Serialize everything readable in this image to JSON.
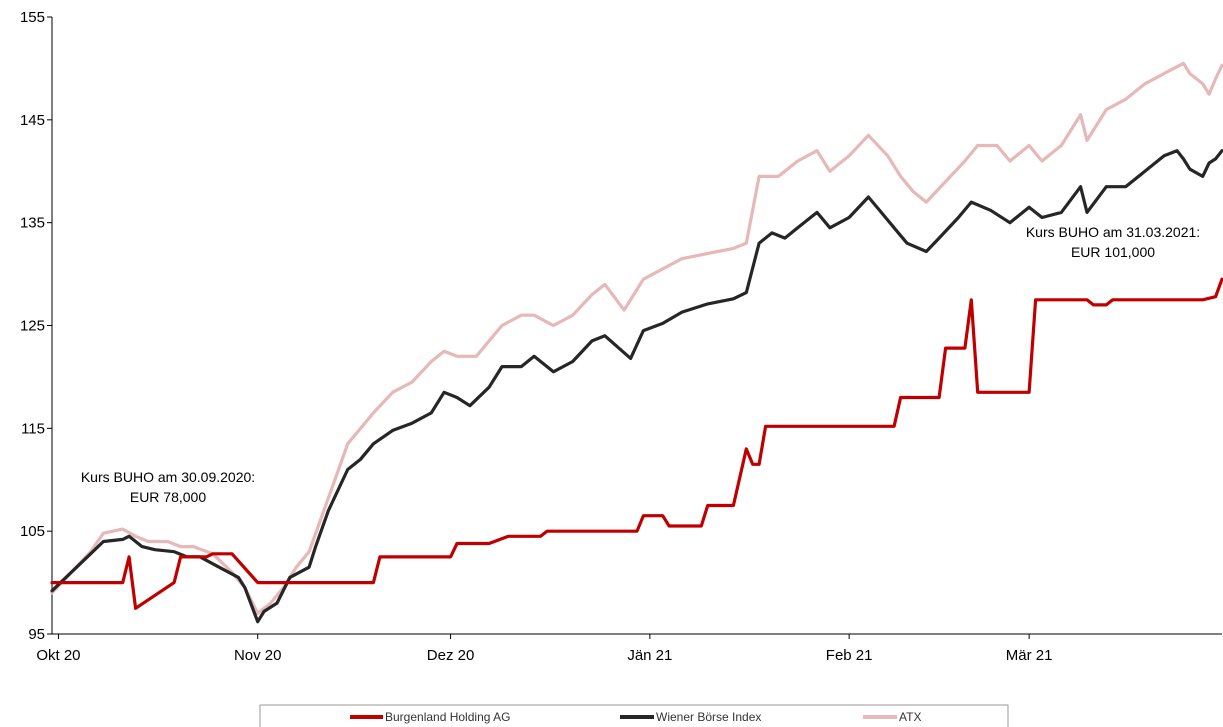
{
  "chart_data": {
    "type": "line",
    "title": "",
    "xlabel": "",
    "ylabel": "",
    "ylim": [
      95,
      155
    ],
    "yticks": [
      95,
      105,
      115,
      125,
      135,
      145,
      155
    ],
    "x_start": "2020-09-30",
    "x_end": "2021-03-31",
    "xticks": [
      {
        "date": "2020-10-01",
        "label": "Okt 20"
      },
      {
        "date": "2020-11-01",
        "label": "Nov 20"
      },
      {
        "date": "2020-12-01",
        "label": "Dez 20"
      },
      {
        "date": "2021-01-01",
        "label": "Jän 21"
      },
      {
        "date": "2021-02-01",
        "label": "Feb 21"
      },
      {
        "date": "2021-03-01",
        "label": "Mär 21"
      }
    ],
    "grid": false,
    "legend_position": "bottom",
    "annotations": [
      {
        "lines": [
          "Kurs BUHO am 30.09.2020:",
          "EUR 78,000"
        ]
      },
      {
        "lines": [
          "Kurs BUHO am 31.03.2021:",
          "EUR 101,000"
        ]
      }
    ],
    "series": [
      {
        "name": "Burgenland Holding AG",
        "color": "#c00000",
        "points": [
          [
            "2020-09-30",
            100
          ],
          [
            "2020-10-07",
            100
          ],
          [
            "2020-10-11",
            100
          ],
          [
            "2020-10-12",
            102.5
          ],
          [
            "2020-10-13",
            97.5
          ],
          [
            "2020-10-19",
            100
          ],
          [
            "2020-10-20",
            102.5
          ],
          [
            "2020-10-24",
            102.5
          ],
          [
            "2020-10-25",
            102.8
          ],
          [
            "2020-10-28",
            102.8
          ],
          [
            "2020-11-01",
            100
          ],
          [
            "2020-11-06",
            100
          ],
          [
            "2020-11-08",
            100
          ],
          [
            "2020-11-14",
            100
          ],
          [
            "2020-11-19",
            100
          ],
          [
            "2020-11-20",
            102.5
          ],
          [
            "2020-11-23",
            102.5
          ],
          [
            "2020-12-01",
            102.5
          ],
          [
            "2020-12-02",
            103.8
          ],
          [
            "2020-12-07",
            103.8
          ],
          [
            "2020-12-10",
            104.5
          ],
          [
            "2020-12-15",
            104.5
          ],
          [
            "2020-12-16",
            105
          ],
          [
            "2020-12-22",
            105
          ],
          [
            "2020-12-30",
            105
          ],
          [
            "2020-12-31",
            106.5
          ],
          [
            "2021-01-03",
            106.5
          ],
          [
            "2021-01-04",
            105.5
          ],
          [
            "2021-01-09",
            105.5
          ],
          [
            "2021-01-10",
            107.5
          ],
          [
            "2021-01-14",
            107.5
          ],
          [
            "2021-01-16",
            113
          ],
          [
            "2021-01-17",
            111.5
          ],
          [
            "2021-01-18",
            111.5
          ],
          [
            "2021-01-19",
            115.2
          ],
          [
            "2021-01-28",
            115.2
          ],
          [
            "2021-02-01",
            115.2
          ],
          [
            "2021-02-08",
            115.2
          ],
          [
            "2021-02-09",
            118
          ],
          [
            "2021-02-15",
            118
          ],
          [
            "2021-02-16",
            122.8
          ],
          [
            "2021-02-19",
            122.8
          ],
          [
            "2021-02-20",
            127.5
          ],
          [
            "2021-02-21",
            118.5
          ],
          [
            "2021-02-28",
            118.5
          ],
          [
            "2021-03-01",
            118.5
          ],
          [
            "2021-03-02",
            127.5
          ],
          [
            "2021-03-10",
            127.5
          ],
          [
            "2021-03-11",
            127
          ],
          [
            "2021-03-13",
            127
          ],
          [
            "2021-03-14",
            127.5
          ],
          [
            "2021-03-28",
            127.5
          ],
          [
            "2021-03-30",
            127.8
          ],
          [
            "2021-03-31",
            129.5
          ]
        ]
      },
      {
        "name": "Wiener Börse Index",
        "color": "#262626",
        "points": [
          [
            "2020-09-30",
            99.2
          ],
          [
            "2020-10-03",
            101
          ],
          [
            "2020-10-06",
            102.8
          ],
          [
            "2020-10-08",
            104
          ],
          [
            "2020-10-11",
            104.2
          ],
          [
            "2020-10-12",
            104.5
          ],
          [
            "2020-10-14",
            103.5
          ],
          [
            "2020-10-16",
            103.2
          ],
          [
            "2020-10-19",
            103
          ],
          [
            "2020-10-21",
            102.5
          ],
          [
            "2020-10-23",
            102.5
          ],
          [
            "2020-10-26",
            101.5
          ],
          [
            "2020-10-29",
            100.5
          ],
          [
            "2020-10-30",
            99.5
          ],
          [
            "2020-11-01",
            96.2
          ],
          [
            "2020-11-02",
            97.2
          ],
          [
            "2020-11-04",
            98
          ],
          [
            "2020-11-06",
            100.5
          ],
          [
            "2020-11-09",
            101.5
          ],
          [
            "2020-11-10",
            103.5
          ],
          [
            "2020-11-12",
            107
          ],
          [
            "2020-11-15",
            111
          ],
          [
            "2020-11-17",
            112
          ],
          [
            "2020-11-19",
            113.5
          ],
          [
            "2020-11-22",
            114.8
          ],
          [
            "2020-11-25",
            115.5
          ],
          [
            "2020-11-28",
            116.5
          ],
          [
            "2020-11-30",
            118.5
          ],
          [
            "2020-12-02",
            118
          ],
          [
            "2020-12-04",
            117.2
          ],
          [
            "2020-12-07",
            119
          ],
          [
            "2020-12-09",
            121
          ],
          [
            "2020-12-12",
            121
          ],
          [
            "2020-12-14",
            122
          ],
          [
            "2020-12-17",
            120.5
          ],
          [
            "2020-12-20",
            121.5
          ],
          [
            "2020-12-23",
            123.5
          ],
          [
            "2020-12-25",
            124
          ],
          [
            "2020-12-29",
            121.8
          ],
          [
            "2020-12-31",
            124.5
          ],
          [
            "2021-01-03",
            125.2
          ],
          [
            "2021-01-06",
            126.3
          ],
          [
            "2021-01-10",
            127.1
          ],
          [
            "2021-01-14",
            127.6
          ],
          [
            "2021-01-16",
            128.2
          ],
          [
            "2021-01-18",
            133
          ],
          [
            "2021-01-20",
            134
          ],
          [
            "2021-01-22",
            133.5
          ],
          [
            "2021-01-24",
            134.5
          ],
          [
            "2021-01-27",
            136
          ],
          [
            "2021-01-29",
            134.5
          ],
          [
            "2021-02-01",
            135.5
          ],
          [
            "2021-02-04",
            137.5
          ],
          [
            "2021-02-06",
            136
          ],
          [
            "2021-02-08",
            134.5
          ],
          [
            "2021-02-10",
            133
          ],
          [
            "2021-02-13",
            132.2
          ],
          [
            "2021-02-15",
            133.5
          ],
          [
            "2021-02-18",
            135.5
          ],
          [
            "2021-02-20",
            137
          ],
          [
            "2021-02-23",
            136.2
          ],
          [
            "2021-02-26",
            135
          ],
          [
            "2021-03-01",
            136.5
          ],
          [
            "2021-03-03",
            135.5
          ],
          [
            "2021-03-06",
            136
          ],
          [
            "2021-03-09",
            138.5
          ],
          [
            "2021-03-10",
            136
          ],
          [
            "2021-03-13",
            138.5
          ],
          [
            "2021-03-16",
            138.5
          ],
          [
            "2021-03-19",
            140
          ],
          [
            "2021-03-22",
            141.5
          ],
          [
            "2021-03-24",
            142
          ],
          [
            "2021-03-25",
            141.2
          ],
          [
            "2021-03-26",
            140.2
          ],
          [
            "2021-03-28",
            139.5
          ],
          [
            "2021-03-29",
            140.8
          ],
          [
            "2021-03-30",
            141.2
          ],
          [
            "2021-03-31",
            142
          ]
        ]
      },
      {
        "name": "ATX",
        "color": "#e6b8b7",
        "points": [
          [
            "2020-09-30",
            99
          ],
          [
            "2020-10-03",
            101
          ],
          [
            "2020-10-06",
            103
          ],
          [
            "2020-10-08",
            104.8
          ],
          [
            "2020-10-11",
            105.2
          ],
          [
            "2020-10-13",
            104.5
          ],
          [
            "2020-10-15",
            104
          ],
          [
            "2020-10-18",
            104
          ],
          [
            "2020-10-20",
            103.5
          ],
          [
            "2020-10-22",
            103.5
          ],
          [
            "2020-10-25",
            102.8
          ],
          [
            "2020-10-28",
            101
          ],
          [
            "2020-10-30",
            99.5
          ],
          [
            "2020-11-01",
            97
          ],
          [
            "2020-11-03",
            98
          ],
          [
            "2020-11-05",
            99.5
          ],
          [
            "2020-11-07",
            101.5
          ],
          [
            "2020-11-09",
            103
          ],
          [
            "2020-11-11",
            106.5
          ],
          [
            "2020-11-13",
            110
          ],
          [
            "2020-11-15",
            113.5
          ],
          [
            "2020-11-17",
            115
          ],
          [
            "2020-11-19",
            116.5
          ],
          [
            "2020-11-22",
            118.5
          ],
          [
            "2020-11-25",
            119.5
          ],
          [
            "2020-11-28",
            121.5
          ],
          [
            "2020-11-30",
            122.5
          ],
          [
            "2020-12-02",
            122
          ],
          [
            "2020-12-05",
            122
          ],
          [
            "2020-12-07",
            123.5
          ],
          [
            "2020-12-09",
            125
          ],
          [
            "2020-12-12",
            126
          ],
          [
            "2020-12-14",
            126
          ],
          [
            "2020-12-17",
            125
          ],
          [
            "2020-12-20",
            126
          ],
          [
            "2020-12-23",
            128
          ],
          [
            "2020-12-25",
            129
          ],
          [
            "2020-12-28",
            126.5
          ],
          [
            "2020-12-31",
            129.5
          ],
          [
            "2021-01-03",
            130.5
          ],
          [
            "2021-01-06",
            131.5
          ],
          [
            "2021-01-10",
            132
          ],
          [
            "2021-01-14",
            132.5
          ],
          [
            "2021-01-16",
            133
          ],
          [
            "2021-01-18",
            139.5
          ],
          [
            "2021-01-21",
            139.5
          ],
          [
            "2021-01-24",
            141
          ],
          [
            "2021-01-27",
            142
          ],
          [
            "2021-01-29",
            140
          ],
          [
            "2021-02-01",
            141.5
          ],
          [
            "2021-02-04",
            143.5
          ],
          [
            "2021-02-07",
            141.5
          ],
          [
            "2021-02-09",
            139.5
          ],
          [
            "2021-02-11",
            138
          ],
          [
            "2021-02-13",
            137
          ],
          [
            "2021-02-16",
            139
          ],
          [
            "2021-02-19",
            141
          ],
          [
            "2021-02-21",
            142.5
          ],
          [
            "2021-02-24",
            142.5
          ],
          [
            "2021-02-26",
            141
          ],
          [
            "2021-03-01",
            142.5
          ],
          [
            "2021-03-03",
            141
          ],
          [
            "2021-03-06",
            142.5
          ],
          [
            "2021-03-09",
            145.5
          ],
          [
            "2021-03-10",
            143
          ],
          [
            "2021-03-13",
            146
          ],
          [
            "2021-03-16",
            147
          ],
          [
            "2021-03-19",
            148.5
          ],
          [
            "2021-03-22",
            149.5
          ],
          [
            "2021-03-25",
            150.5
          ],
          [
            "2021-03-26",
            149.5
          ],
          [
            "2021-03-28",
            148.5
          ],
          [
            "2021-03-29",
            147.5
          ],
          [
            "2021-03-30",
            149
          ],
          [
            "2021-03-31",
            150.3
          ]
        ]
      }
    ]
  }
}
